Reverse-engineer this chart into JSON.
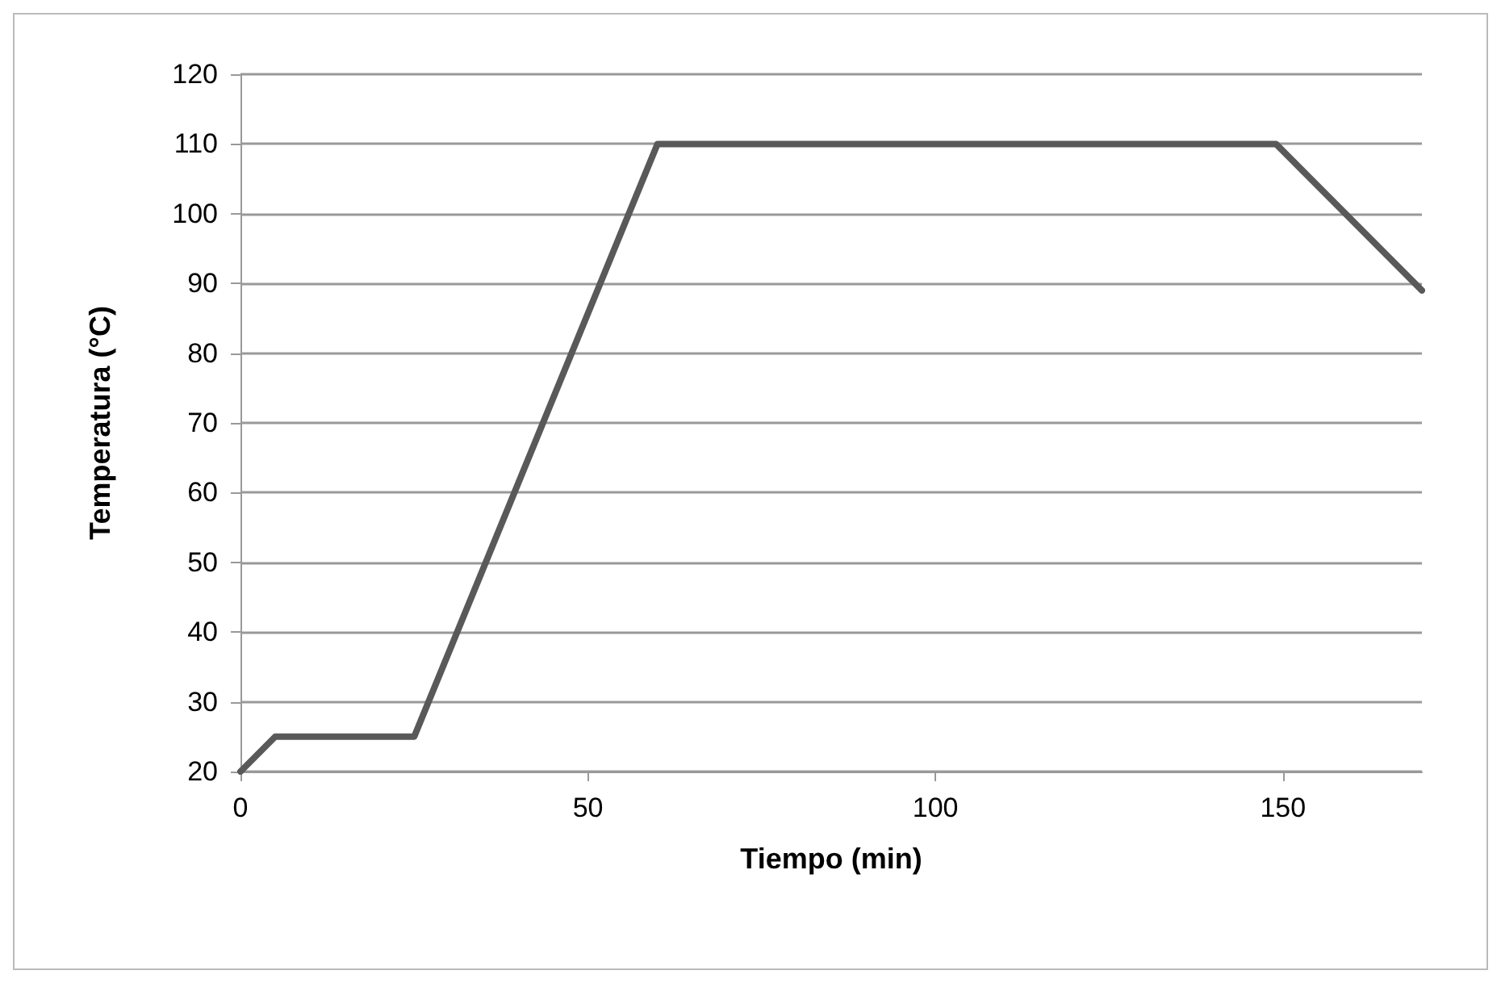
{
  "chart_data": {
    "type": "line",
    "xlabel": "Tiempo (min)",
    "ylabel": "Temperatura (°C)",
    "x": [
      0,
      5,
      25,
      60,
      149,
      170
    ],
    "series": [
      {
        "color": "#595959",
        "values": [
          20,
          25,
          25,
          110,
          110,
          89
        ]
      }
    ],
    "xlim": [
      0,
      170
    ],
    "xticks": [
      0,
      50,
      100,
      150
    ],
    "ylim": [
      20,
      120
    ],
    "yticks": [
      20,
      30,
      40,
      50,
      60,
      70,
      80,
      90,
      100,
      110,
      120
    ],
    "grid": "y",
    "marker": "none",
    "line_style": "solid"
  }
}
